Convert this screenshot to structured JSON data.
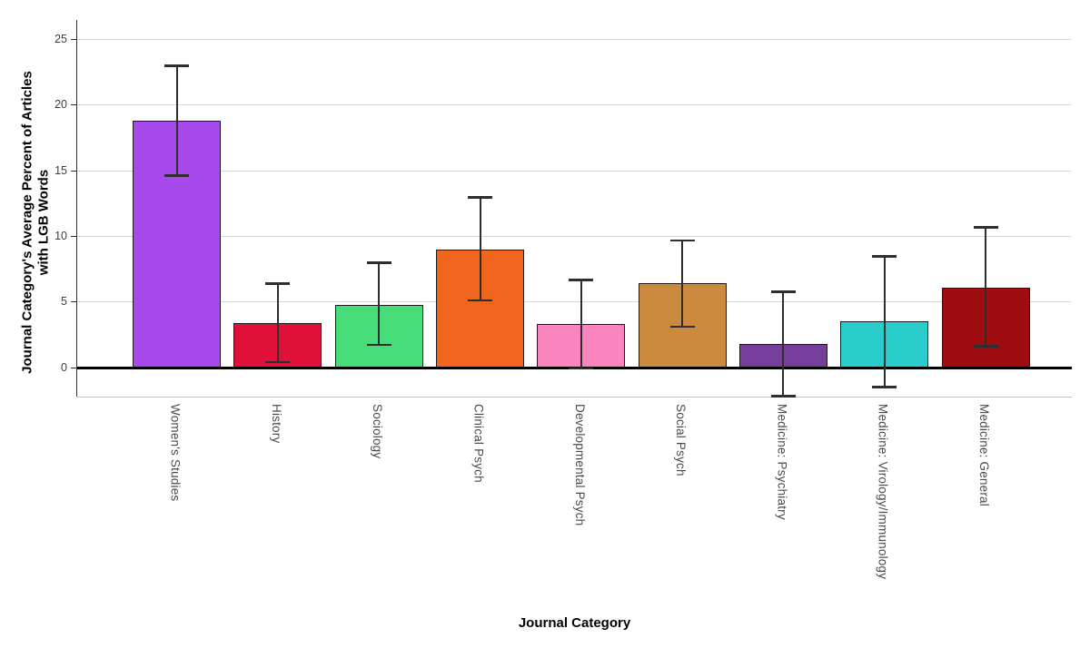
{
  "chart_data": {
    "type": "bar",
    "title": "",
    "xlabel": "Journal Category",
    "ylabel": "Journal Category's Average Percent of Articles with LGB Words",
    "ylabel_lines": [
      "Journal Category's Average Percent of Articles",
      "with LGB Words"
    ],
    "categories": [
      "Women's Studies",
      "History",
      "Sociology",
      "Clinical Psych",
      "Developmental Psych",
      "Social Psych",
      "Medicine: Psychiatry",
      "Medicine: Virology/Immunology",
      "Medicine: General"
    ],
    "values": [
      18.8,
      3.4,
      4.8,
      9.0,
      3.3,
      6.4,
      1.8,
      3.5,
      6.1
    ],
    "error_low": [
      14.6,
      0.4,
      1.7,
      5.1,
      -0.1,
      3.1,
      -2.2,
      -1.5,
      1.6
    ],
    "error_high": [
      23.0,
      6.4,
      8.0,
      13.0,
      6.7,
      9.7,
      5.8,
      8.5,
      10.7
    ],
    "bar_colors": [
      "#A849EC",
      "#E01039",
      "#46DC78",
      "#F0661F",
      "#FA84BE",
      "#CC8A3E",
      "#763E9B",
      "#28CDCC",
      "#A00D10"
    ],
    "yticks": [
      0,
      5,
      10,
      15,
      20,
      25
    ],
    "ylim": [
      -2.2,
      26.5
    ],
    "grid": "horizontal",
    "legend_position": "none",
    "error_bar_style": "capped confidence intervals"
  },
  "style": {
    "background": "#ffffff",
    "gridline_color": "#d6d6d6",
    "frame_color": "#c2c2c2",
    "axis_color": "#2e2e2e",
    "zero_line_color": "#000000",
    "bar_border_color": "#1a1a1a",
    "error_bar_color": "#2e2e2e",
    "ytick_label_color": "#3d3d3d",
    "category_label_color": "#4a4a4a"
  }
}
